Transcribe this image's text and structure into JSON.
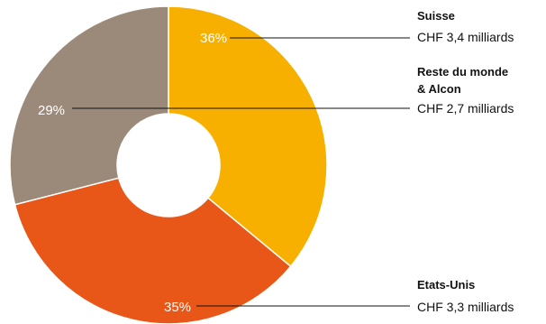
{
  "chart_data": {
    "type": "pie",
    "donut": true,
    "slices": [
      {
        "label_lines": [
          "Suisse"
        ],
        "value_text": "CHF 3,4 milliards",
        "value": 3.4,
        "percent": 36,
        "percent_text": "36%",
        "color": "#f7b000"
      },
      {
        "label_lines": [
          "Etats-Unis"
        ],
        "value_text": "CHF 3,3 milliards",
        "value": 3.3,
        "percent": 35,
        "percent_text": "35%",
        "color": "#e85618"
      },
      {
        "label_lines": [
          "Reste du monde",
          "& Alcon"
        ],
        "value_text": "CHF 2,7 milliards",
        "value": 2.7,
        "percent": 29,
        "percent_text": "29%",
        "color": "#9b8a7a"
      }
    ]
  }
}
